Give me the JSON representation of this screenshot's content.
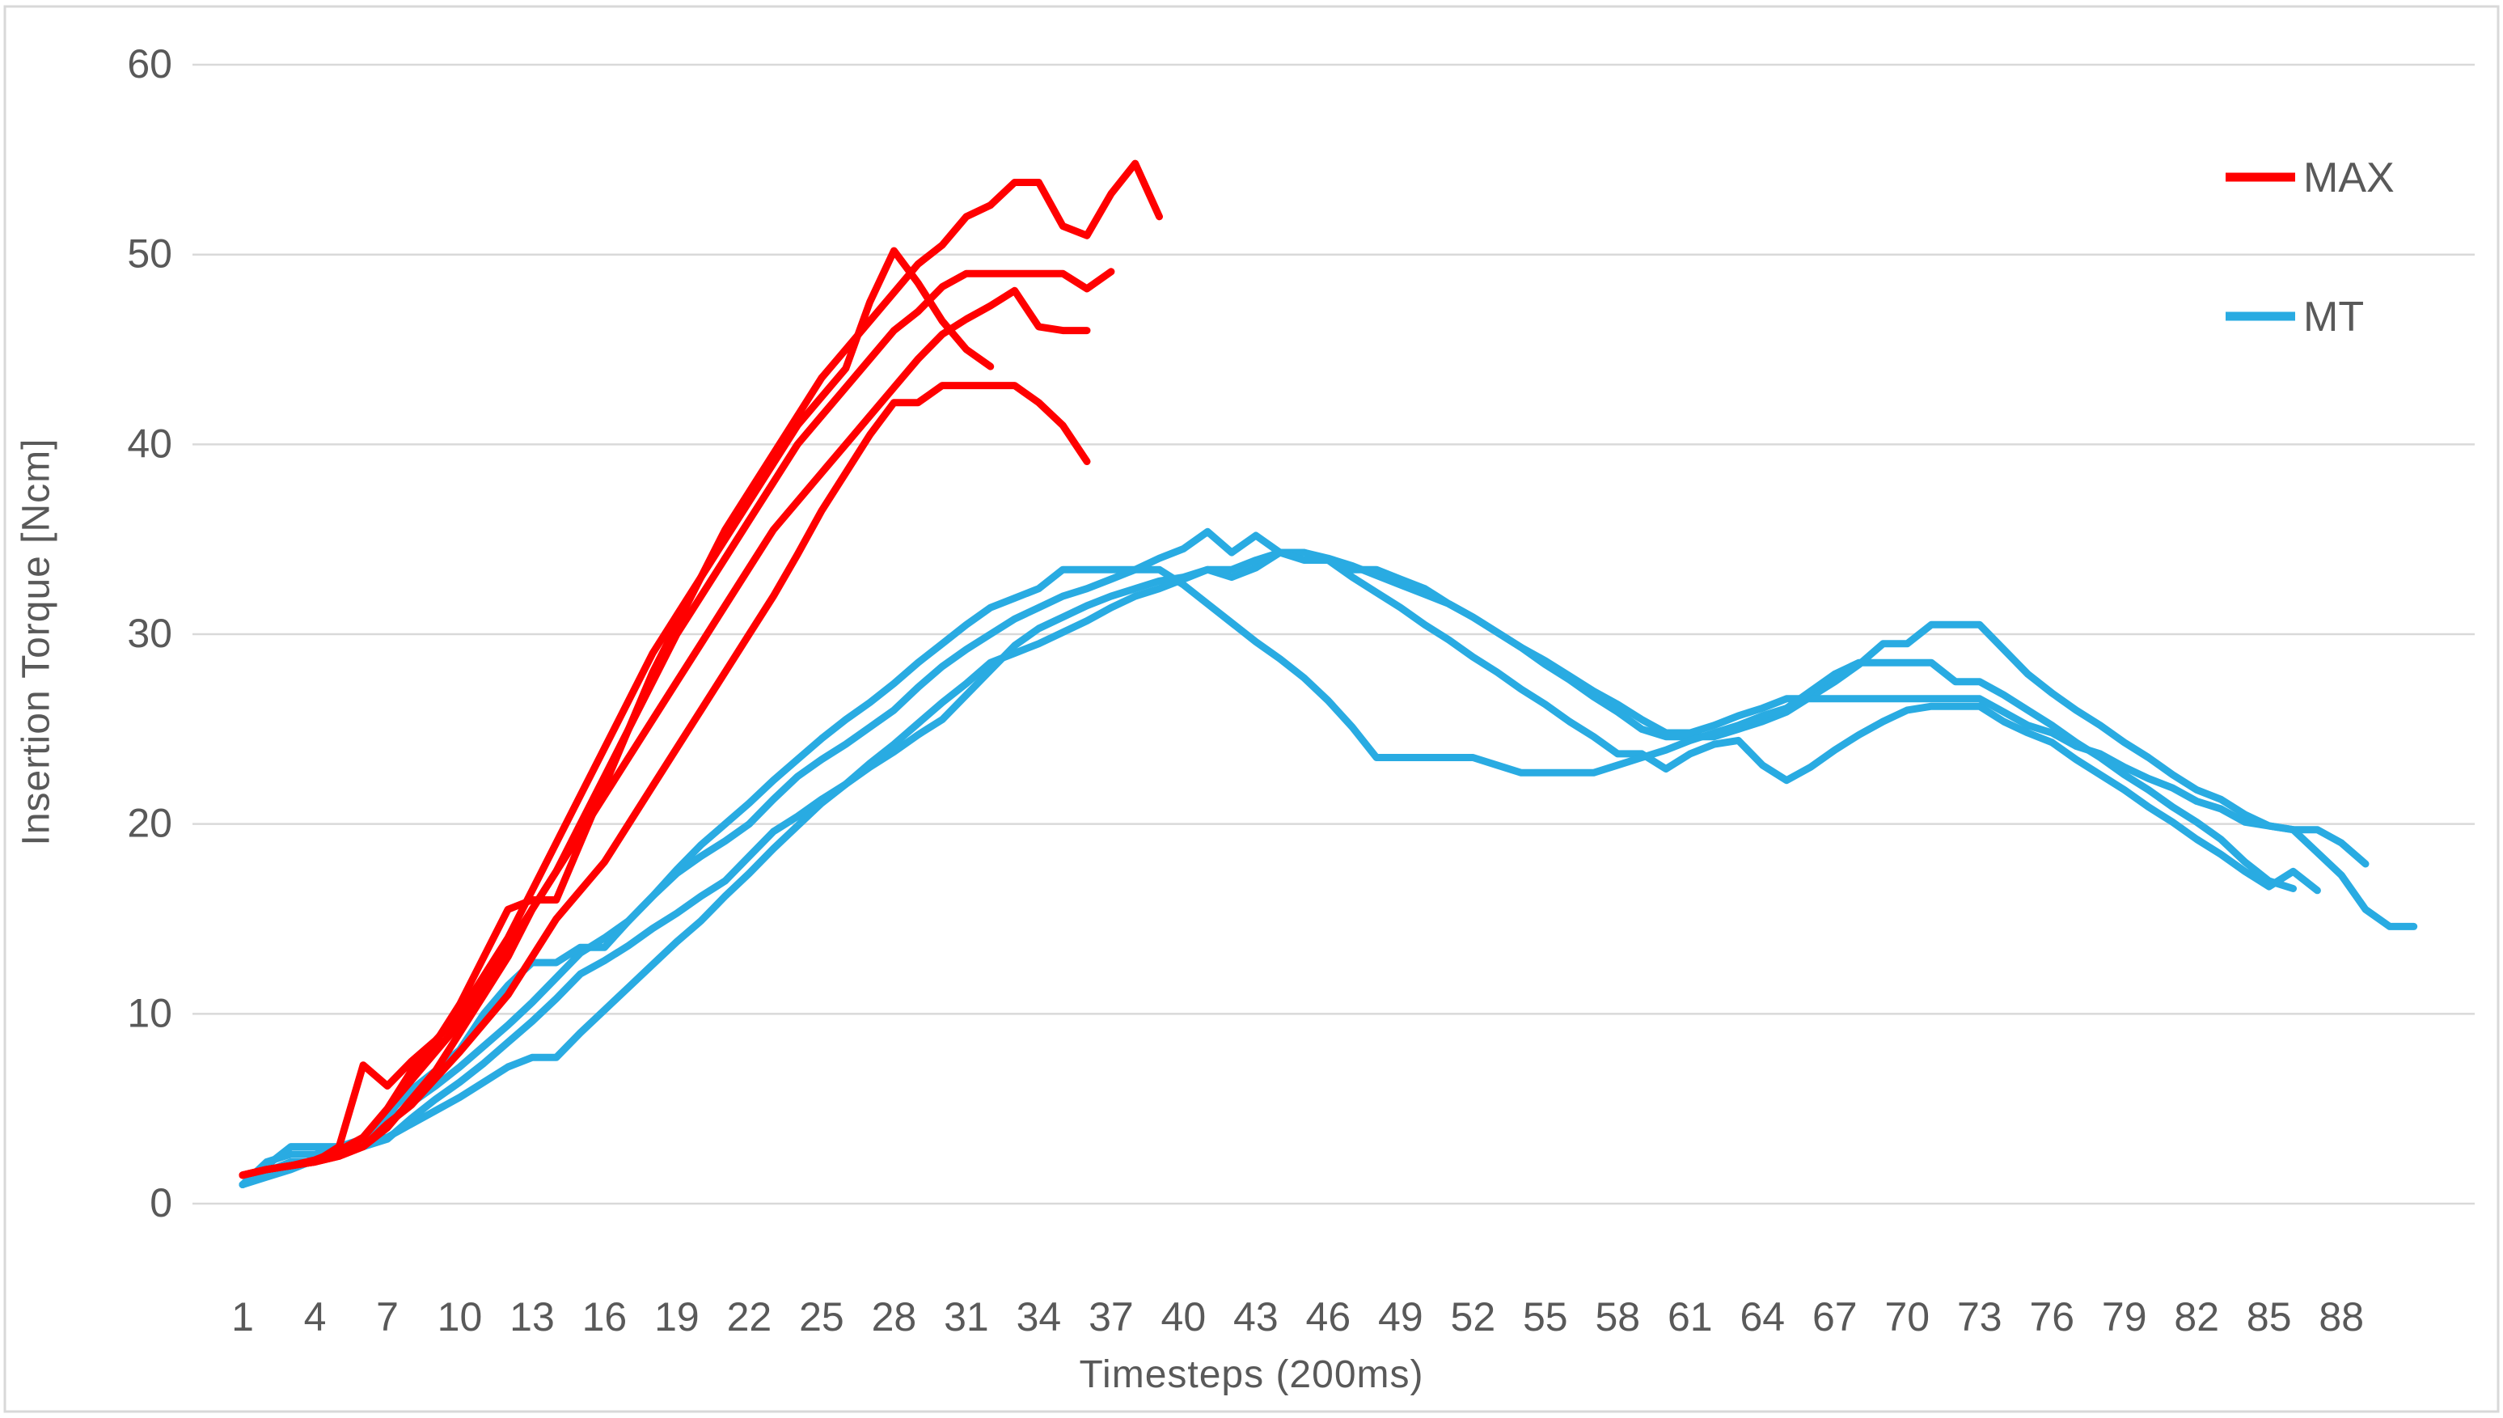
{
  "chart_data": {
    "type": "line",
    "title": "",
    "xlabel": "Timesteps (200ms)",
    "ylabel": "Insertion Torque [Ncm]",
    "x_ticks": [
      1,
      4,
      7,
      10,
      13,
      16,
      19,
      22,
      25,
      28,
      31,
      34,
      37,
      40,
      43,
      46,
      49,
      52,
      55,
      58,
      61,
      64,
      67,
      70,
      73,
      76,
      79,
      82,
      85,
      88
    ],
    "y_ticks": [
      0,
      10,
      20,
      30,
      40,
      50,
      60
    ],
    "ylim": [
      0,
      60
    ],
    "xlim": [
      1,
      92
    ],
    "grid": true,
    "gridline_color": "#d9d9d9",
    "axis_text_color": "#595959",
    "legend_position": "top-right",
    "series": [
      {
        "name": "MT",
        "color": "#29abe2",
        "lines": [
          [
            1.0,
            2.2,
            2.6,
            2.6,
            3.0,
            3.4,
            4.3,
            5.3,
            6.2,
            7.2,
            8.3,
            9.4,
            10.6,
            11.9,
            13.2,
            14.0,
            14.9,
            16.2,
            17.4,
            18.3,
            19.1,
            20.0,
            21.3,
            22.5,
            23.4,
            24.2,
            25.1,
            26.0,
            27.2,
            28.3,
            29.2,
            30.0,
            30.8,
            31.4,
            32.0,
            32.4,
            32.9,
            33.4,
            34.0,
            34.5,
            35.4,
            34.3,
            35.2,
            34.3,
            34.3,
            34.0,
            33.6,
            33.1,
            32.6,
            32.1,
            31.6,
            30.9,
            30.1,
            29.3,
            28.4,
            27.6,
            26.7,
            25.9,
            25.0,
            24.6,
            24.6,
            24.6,
            25.0,
            25.4,
            25.9,
            26.7,
            27.5,
            28.4,
            29.5,
            29.5,
            30.5,
            30.5,
            30.5,
            29.2,
            27.9,
            26.9,
            26.0,
            25.2,
            24.3,
            23.5,
            22.6,
            21.8,
            21.3,
            20.5,
            19.9,
            19.7,
            19.7,
            19.0,
            17.9
          ],
          [
            1.0,
            1.7,
            2.2,
            2.2,
            2.6,
            3.0,
            3.4,
            4.5,
            5.5,
            6.4,
            7.4,
            8.5,
            9.6,
            10.8,
            12.1,
            12.8,
            13.6,
            14.5,
            15.3,
            16.2,
            17.0,
            18.3,
            19.6,
            20.4,
            21.3,
            22.1,
            23.0,
            23.8,
            24.7,
            25.5,
            26.8,
            28.1,
            29.4,
            30.3,
            30.9,
            31.5,
            32.0,
            32.4,
            32.8,
            33.0,
            33.4,
            33.0,
            33.5,
            34.3,
            34.3,
            33.9,
            33.0,
            32.2,
            31.4,
            30.5,
            29.7,
            28.8,
            28.0,
            27.1,
            26.3,
            25.4,
            24.6,
            23.7,
            23.7,
            22.9,
            23.7,
            24.2,
            24.4,
            23.1,
            22.3,
            23.0,
            23.9,
            24.7,
            25.4,
            26.0,
            26.2,
            26.2,
            26.2,
            25.4,
            24.8,
            24.3,
            23.4,
            22.6,
            21.8,
            20.9,
            20.1,
            19.2,
            18.4,
            17.5,
            16.7,
            17.5,
            16.5
          ],
          [
            1.0,
            1.4,
            1.8,
            2.3,
            2.7,
            3.1,
            3.5,
            4.2,
            4.9,
            5.6,
            6.4,
            7.2,
            7.7,
            7.7,
            9.0,
            10.2,
            11.4,
            12.6,
            13.8,
            14.9,
            16.2,
            17.4,
            18.7,
            19.9,
            21.1,
            22.1,
            23.2,
            24.2,
            25.3,
            26.4,
            27.4,
            28.5,
            29.0,
            29.5,
            30.1,
            30.7,
            31.4,
            32.0,
            32.4,
            32.9,
            33.4,
            33.4,
            33.9,
            34.3,
            33.9,
            33.9,
            33.4,
            33.4,
            32.9,
            32.4,
            31.6,
            30.9,
            30.1,
            29.3,
            28.6,
            27.8,
            27.0,
            26.3,
            25.5,
            24.8,
            24.8,
            25.2,
            25.7,
            26.1,
            26.6,
            26.6,
            26.6,
            26.6,
            26.6,
            26.6,
            26.6,
            26.6,
            26.6,
            25.9,
            25.2,
            24.8,
            24.1,
            23.7,
            23.0,
            22.4,
            21.9,
            21.2,
            20.8,
            20.1,
            19.9,
            19.7,
            18.5,
            17.3,
            15.5,
            14.6,
            14.6
          ],
          [
            1.0,
            2.0,
            3.0,
            3.0,
            3.0,
            3.4,
            4.7,
            6.0,
            7.0,
            8.1,
            10.0,
            11.5,
            12.7,
            12.7,
            13.5,
            13.5,
            14.9,
            16.2,
            17.6,
            18.9,
            20.0,
            21.1,
            22.3,
            23.4,
            24.5,
            25.5,
            26.4,
            27.4,
            28.5,
            29.5,
            30.5,
            31.4,
            31.9,
            32.4,
            33.4,
            33.4,
            33.4,
            33.4,
            33.4,
            32.6,
            31.6,
            30.6,
            29.6,
            28.7,
            27.7,
            26.5,
            25.1,
            23.5,
            23.5,
            23.5,
            23.5,
            23.5,
            23.1,
            22.7,
            22.7,
            22.7,
            22.7,
            23.1,
            23.5,
            23.9,
            24.4,
            24.8,
            25.2,
            25.7,
            26.1,
            27.0,
            27.9,
            28.5,
            28.5,
            28.5,
            28.5,
            27.5,
            27.5,
            26.8,
            26.0,
            25.2,
            24.3,
            23.5,
            22.6,
            21.8,
            20.9,
            20.1,
            19.2,
            18.0,
            17.0,
            16.6
          ]
        ]
      },
      {
        "name": "MAX",
        "color": "#ff0000",
        "lines": [
          [
            1.5,
            1.8,
            2.0,
            2.2,
            3.0,
            7.3,
            6.2,
            7.5,
            8.6,
            10.0,
            12.0,
            14.0,
            16.5,
            19.0,
            21.5,
            24.0,
            26.5,
            29.0,
            31.0,
            33.0,
            35.5,
            37.5,
            39.5,
            41.5,
            43.5,
            45.0,
            46.5,
            48.0,
            49.5,
            50.5,
            52.0,
            52.6,
            53.8,
            53.8,
            51.5,
            51.0,
            53.2,
            54.8,
            52.0
          ],
          [
            1.5,
            1.8,
            2.0,
            2.2,
            2.5,
            3.5,
            5.0,
            7.0,
            8.5,
            10.5,
            13.0,
            15.5,
            16.0,
            16.0,
            19.0,
            22.0,
            25.0,
            28.0,
            30.5,
            33.0,
            35.0,
            37.0,
            39.0,
            41.0,
            42.5,
            44.0,
            47.5,
            50.2,
            48.5,
            46.5,
            45.0,
            44.1
          ],
          [
            1.5,
            1.8,
            2.0,
            2.2,
            2.5,
            3.0,
            4.0,
            5.5,
            7.0,
            9.0,
            11.0,
            13.0,
            15.5,
            17.5,
            20.0,
            22.5,
            25.0,
            27.5,
            30.0,
            32.0,
            34.0,
            36.0,
            38.0,
            40.0,
            41.5,
            43.0,
            44.5,
            46.0,
            47.0,
            48.3,
            49.0,
            49.0,
            49.0,
            49.0,
            49.0,
            48.2,
            49.1
          ],
          [
            1.5,
            1.8,
            2.0,
            2.3,
            2.8,
            3.5,
            5.0,
            6.5,
            8.0,
            9.5,
            11.5,
            13.5,
            15.5,
            17.5,
            19.5,
            21.5,
            23.5,
            25.5,
            27.5,
            29.5,
            31.5,
            33.5,
            35.5,
            37.0,
            38.5,
            40.0,
            41.5,
            43.0,
            44.5,
            45.8,
            46.6,
            47.3,
            48.1,
            46.2,
            46.0,
            46.0
          ],
          [
            1.5,
            1.8,
            2.0,
            2.2,
            2.5,
            3.0,
            4.2,
            5.2,
            6.6,
            8.0,
            9.5,
            11.0,
            13.0,
            15.0,
            16.5,
            18.0,
            20.0,
            22.0,
            24.0,
            26.0,
            28.0,
            30.0,
            32.0,
            34.2,
            36.5,
            38.5,
            40.5,
            42.2,
            42.2,
            43.1,
            43.1,
            43.1,
            43.1,
            42.2,
            41.0,
            39.1
          ]
        ]
      }
    ]
  },
  "legend": {
    "items": [
      {
        "label": "MAX",
        "color": "#ff0000"
      },
      {
        "label": "MT",
        "color": "#29abe2"
      }
    ]
  },
  "frame": {
    "border_color": "#d8d8d8"
  }
}
